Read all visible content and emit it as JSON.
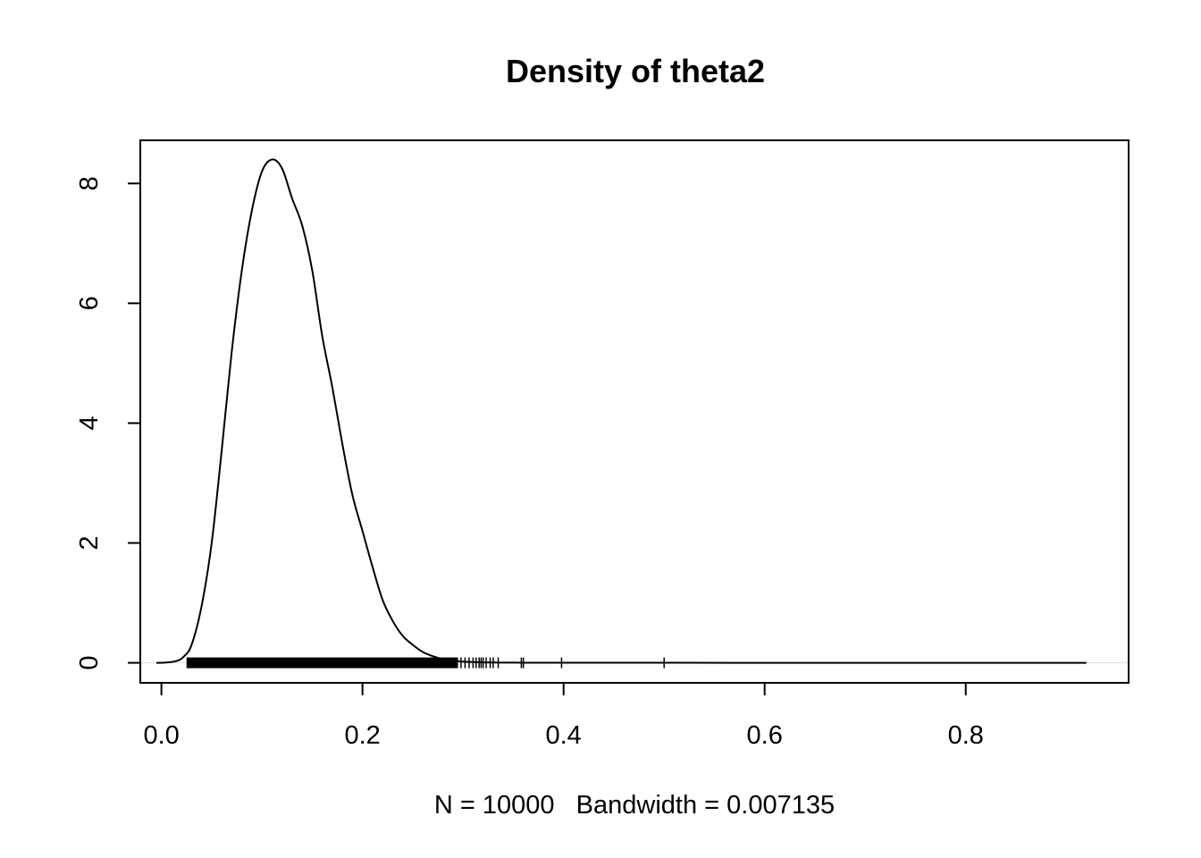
{
  "chart_data": {
    "type": "line",
    "title": "Density of theta2",
    "xlabel": "N = 10000   Bandwidth = 0.007135",
    "ylabel": "",
    "xlim": [
      -0.021,
      0.962
    ],
    "ylim": [
      -0.334,
      8.72
    ],
    "xticks": [
      0.0,
      0.2,
      0.4,
      0.6,
      0.8
    ],
    "xtick_labels": [
      "0.0",
      "0.2",
      "0.4",
      "0.6",
      "0.8"
    ],
    "yticks": [
      0,
      2,
      4,
      6,
      8
    ],
    "ytick_labels": [
      "0",
      "2",
      "4",
      "6",
      "8"
    ],
    "grid": false,
    "legend": "none",
    "zero_line_color": "#dddddd",
    "line_color": "#000000",
    "series": [
      {
        "x": [
          -0.005,
          0.005,
          0.015,
          0.022,
          0.03,
          0.04,
          0.05,
          0.06,
          0.07,
          0.08,
          0.09,
          0.1,
          0.11,
          0.12,
          0.13,
          0.14,
          0.15,
          0.16,
          0.17,
          0.18,
          0.19,
          0.2,
          0.21,
          0.22,
          0.23,
          0.24,
          0.25,
          0.26,
          0.27,
          0.28,
          0.29,
          0.3,
          0.31,
          0.32,
          0.33,
          0.34,
          0.35,
          0.36,
          0.38,
          0.4,
          0.45,
          0.5,
          0.6,
          0.7,
          0.8,
          0.9,
          0.92
        ],
        "y": [
          0.0,
          0.005,
          0.03,
          0.1,
          0.3,
          0.95,
          2.0,
          3.55,
          5.2,
          6.55,
          7.55,
          8.2,
          8.4,
          8.25,
          7.75,
          7.3,
          6.55,
          5.45,
          4.6,
          3.65,
          2.8,
          2.2,
          1.6,
          1.05,
          0.7,
          0.45,
          0.3,
          0.18,
          0.11,
          0.06,
          0.035,
          0.02,
          0.012,
          0.008,
          0.005,
          0.004,
          0.003,
          0.0025,
          0.002,
          0.0015,
          0.001,
          0.0008,
          0.0005,
          0.0003,
          0.0002,
          0.0001,
          0.0
        ]
      }
    ],
    "rug": {
      "dense_range": [
        0.025,
        0.295
      ],
      "sparse": [
        0.298,
        0.302,
        0.306,
        0.31,
        0.313,
        0.316,
        0.318,
        0.32,
        0.323,
        0.327,
        0.33,
        0.335,
        0.358,
        0.36,
        0.398,
        0.5
      ]
    }
  }
}
